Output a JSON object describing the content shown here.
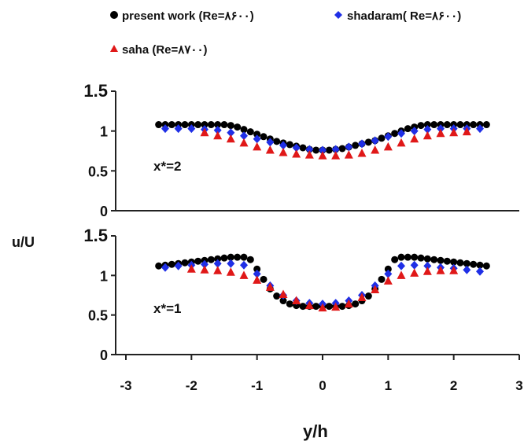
{
  "legend": [
    {
      "label": "present work (Re=٨۶٠٠)",
      "marker": "circle",
      "color": "#000000"
    },
    {
      "label": "shadaram( Re=٨۶٠٠)",
      "marker": "diamond",
      "color": "#1f2fe6"
    },
    {
      "label": "saha (Re=٨٧٠٠)",
      "marker": "triangle",
      "color": "#e01818"
    }
  ],
  "chart_data": {
    "type": "scatter",
    "shared_xlabel": "y/h",
    "shared_ylabel": "u/U",
    "xlim": [
      -3,
      3
    ],
    "xticks": [
      "-3",
      "-2",
      "-1",
      "0",
      "1",
      "2",
      "3"
    ],
    "panels": [
      {
        "annotation": "x*=2",
        "ylim": [
          0,
          1.5
        ],
        "yticks": [
          "0",
          "0.5",
          "1",
          "1.5"
        ],
        "series": [
          {
            "name": "present work (Re=٨۶٠٠)",
            "marker": "circle",
            "color": "#000000",
            "x": [
              -2.5,
              -2.4,
              -2.3,
              -2.2,
              -2.1,
              -2.0,
              -1.9,
              -1.8,
              -1.7,
              -1.6,
              -1.5,
              -1.4,
              -1.3,
              -1.2,
              -1.1,
              -1.0,
              -0.9,
              -0.8,
              -0.7,
              -0.6,
              -0.5,
              -0.4,
              -0.3,
              -0.2,
              -0.1,
              0.0,
              0.1,
              0.2,
              0.3,
              0.4,
              0.5,
              0.6,
              0.7,
              0.8,
              0.9,
              1.0,
              1.1,
              1.2,
              1.3,
              1.4,
              1.5,
              1.6,
              1.7,
              1.8,
              1.9,
              2.0,
              2.1,
              2.2,
              2.3,
              2.4,
              2.5
            ],
            "y": [
              1.08,
              1.08,
              1.08,
              1.08,
              1.08,
              1.08,
              1.08,
              1.08,
              1.08,
              1.08,
              1.08,
              1.07,
              1.05,
              1.02,
              0.99,
              0.96,
              0.93,
              0.9,
              0.87,
              0.85,
              0.83,
              0.81,
              0.79,
              0.77,
              0.76,
              0.76,
              0.76,
              0.77,
              0.78,
              0.8,
              0.82,
              0.84,
              0.86,
              0.88,
              0.91,
              0.94,
              0.97,
              1.0,
              1.03,
              1.05,
              1.07,
              1.08,
              1.08,
              1.08,
              1.08,
              1.08,
              1.08,
              1.08,
              1.08,
              1.08,
              1.08
            ]
          },
          {
            "name": "shadaram( Re=٨۶٠٠)",
            "marker": "diamond",
            "color": "#1f2fe6",
            "x": [
              -2.4,
              -2.2,
              -2.0,
              -1.8,
              -1.6,
              -1.4,
              -1.2,
              -1.0,
              -0.8,
              -0.6,
              -0.4,
              -0.2,
              0.0,
              0.2,
              0.4,
              0.6,
              0.8,
              1.0,
              1.2,
              1.4,
              1.6,
              1.8,
              2.0,
              2.2,
              2.4
            ],
            "y": [
              1.03,
              1.03,
              1.03,
              1.02,
              1.01,
              0.98,
              0.94,
              0.9,
              0.86,
              0.82,
              0.79,
              0.77,
              0.76,
              0.77,
              0.8,
              0.84,
              0.88,
              0.93,
              0.97,
              1.0,
              1.02,
              1.03,
              1.03,
              1.03,
              1.03
            ]
          },
          {
            "name": "saha (Re=٨٧٠٠)",
            "marker": "triangle",
            "color": "#e01818",
            "x": [
              -1.8,
              -1.6,
              -1.4,
              -1.2,
              -1.0,
              -0.8,
              -0.6,
              -0.4,
              -0.2,
              0.0,
              0.2,
              0.4,
              0.6,
              0.8,
              1.0,
              1.2,
              1.4,
              1.6,
              1.8,
              2.0,
              2.2
            ],
            "y": [
              0.98,
              0.94,
              0.9,
              0.85,
              0.8,
              0.76,
              0.73,
              0.71,
              0.7,
              0.69,
              0.69,
              0.7,
              0.72,
              0.76,
              0.8,
              0.85,
              0.9,
              0.94,
              0.97,
              0.98,
              0.99
            ]
          }
        ]
      },
      {
        "annotation": "x*=1",
        "ylim": [
          0,
          1.5
        ],
        "yticks": [
          "0",
          "0.5",
          "1",
          "1.5"
        ],
        "series": [
          {
            "name": "present work (Re=٨۶٠٠)",
            "marker": "circle",
            "color": "#000000",
            "x": [
              -2.5,
              -2.4,
              -2.3,
              -2.2,
              -2.1,
              -2.0,
              -1.9,
              -1.8,
              -1.7,
              -1.6,
              -1.5,
              -1.4,
              -1.3,
              -1.2,
              -1.1,
              -1.0,
              -0.9,
              -0.8,
              -0.7,
              -0.6,
              -0.5,
              -0.4,
              -0.3,
              -0.2,
              -0.1,
              0.0,
              0.1,
              0.2,
              0.3,
              0.4,
              0.5,
              0.6,
              0.7,
              0.8,
              0.9,
              1.0,
              1.1,
              1.2,
              1.3,
              1.4,
              1.5,
              1.6,
              1.7,
              1.8,
              1.9,
              2.0,
              2.1,
              2.2,
              2.3,
              2.4,
              2.5
            ],
            "y": [
              1.12,
              1.13,
              1.14,
              1.15,
              1.16,
              1.17,
              1.18,
              1.19,
              1.2,
              1.21,
              1.22,
              1.23,
              1.23,
              1.23,
              1.2,
              1.08,
              0.95,
              0.83,
              0.74,
              0.68,
              0.64,
              0.62,
              0.61,
              0.61,
              0.61,
              0.61,
              0.61,
              0.61,
              0.61,
              0.62,
              0.64,
              0.68,
              0.74,
              0.83,
              0.95,
              1.08,
              1.2,
              1.23,
              1.23,
              1.23,
              1.22,
              1.21,
              1.2,
              1.19,
              1.18,
              1.17,
              1.16,
              1.15,
              1.14,
              1.13,
              1.12
            ]
          },
          {
            "name": "shadaram( Re=٨۶٠٠)",
            "marker": "diamond",
            "color": "#1f2fe6",
            "x": [
              -2.4,
              -2.2,
              -2.0,
              -1.8,
              -1.6,
              -1.4,
              -1.2,
              -1.0,
              -0.8,
              -0.6,
              -0.4,
              -0.2,
              0.0,
              0.2,
              0.4,
              0.6,
              0.8,
              1.0,
              1.2,
              1.4,
              1.6,
              1.8,
              2.0,
              2.2,
              2.4
            ],
            "y": [
              1.1,
              1.12,
              1.13,
              1.14,
              1.15,
              1.15,
              1.13,
              1.02,
              0.87,
              0.75,
              0.68,
              0.65,
              0.64,
              0.65,
              0.68,
              0.75,
              0.87,
              1.02,
              1.12,
              1.13,
              1.12,
              1.1,
              1.09,
              1.07,
              1.05
            ]
          },
          {
            "name": "saha (Re=٨٧٠٠)",
            "marker": "triangle",
            "color": "#e01818",
            "x": [
              -2.0,
              -1.8,
              -1.6,
              -1.4,
              -1.2,
              -1.0,
              -0.8,
              -0.6,
              -0.4,
              -0.2,
              0.0,
              0.2,
              0.4,
              0.6,
              0.8,
              1.0,
              1.2,
              1.4,
              1.6,
              1.8,
              2.0
            ],
            "y": [
              1.08,
              1.07,
              1.06,
              1.04,
              1.0,
              0.94,
              0.85,
              0.76,
              0.68,
              0.62,
              0.59,
              0.6,
              0.64,
              0.72,
              0.82,
              0.93,
              1.0,
              1.03,
              1.05,
              1.06,
              1.06
            ]
          }
        ]
      }
    ]
  }
}
